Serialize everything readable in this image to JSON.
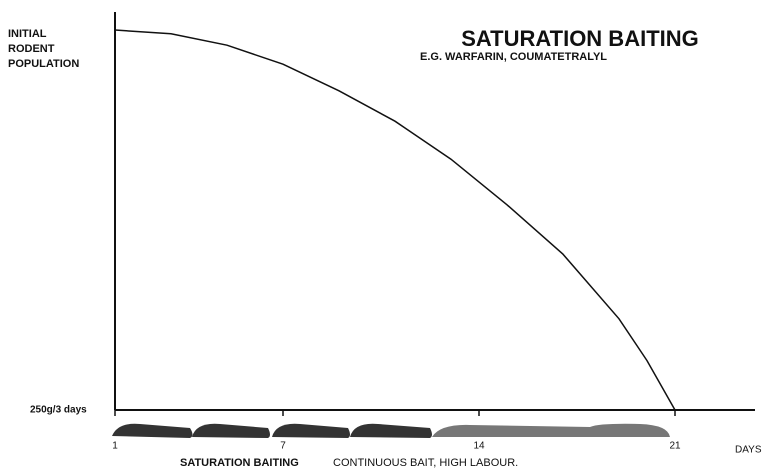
{
  "chart_data": {
    "type": "line",
    "title": "SATURATION BAITING",
    "subtitle": "E.G. WARFARIN, COUMATETRALYL",
    "y_label": [
      "INITIAL",
      "RODENT",
      "POPULATION"
    ],
    "baseline_label": "250g/3 days",
    "x_label": "DAYS",
    "caption_bold": "SATURATION BAITING",
    "caption": "CONTINUOUS BAIT, HIGH LABOUR.",
    "x": [
      1,
      3,
      5,
      7,
      9,
      11,
      13,
      15,
      17,
      19,
      20,
      21
    ],
    "values": [
      100,
      99,
      96,
      91,
      84,
      76,
      66,
      54,
      41,
      24,
      13,
      0
    ],
    "color": "#111111",
    "xlim": [
      1,
      21
    ],
    "ylim": [
      0,
      100
    ],
    "xticks": [
      1,
      7,
      14,
      21
    ]
  }
}
